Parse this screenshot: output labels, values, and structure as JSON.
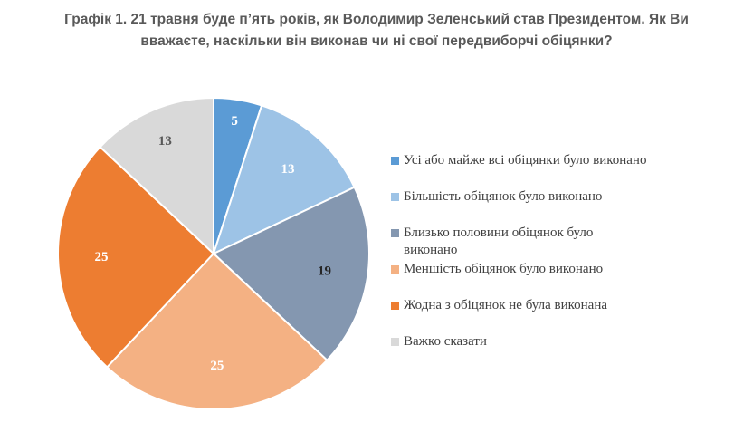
{
  "chart_data": {
    "type": "pie",
    "title_lines": [
      "Графік 1. 21 травня буде п’ять років, як Володимир Зеленський став Президентом. Як Ви",
      "вважаєте, наскільки він виконав чи ні свої передвиборчі обіцянки?"
    ],
    "categories": [
      "Усі або майже всі обіцянки було виконано",
      "Більшість обіцянок було виконано",
      "Близько половини обіцянок було виконано",
      "Меншість обіцянок було виконано",
      "Жодна з обіцянок не була виконана",
      "Важко сказати"
    ],
    "values": [
      5,
      13,
      19,
      25,
      25,
      13
    ],
    "value_labels": [
      "5",
      "13",
      "19",
      "25",
      "25",
      "13"
    ],
    "colors": [
      "#5B9BD5",
      "#9DC3E6",
      "#8497B0",
      "#F4B183",
      "#ED7D31",
      "#D9D9D9"
    ],
    "label_colors": [
      "#ffffff",
      "#ffffff",
      "#262626",
      "#ffffff",
      "#ffffff",
      "#595959"
    ],
    "legend_position": "right"
  }
}
